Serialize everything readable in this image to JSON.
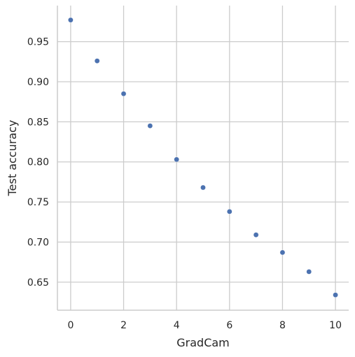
{
  "chart_data": {
    "type": "scatter",
    "title": "",
    "xlabel": "GradCam",
    "ylabel": "Test accuracy",
    "xlim": [
      -0.5,
      10.5
    ],
    "ylim": [
      0.615,
      0.995
    ],
    "xticks": [
      0,
      2,
      4,
      6,
      8,
      10
    ],
    "yticks": [
      0.65,
      0.7,
      0.75,
      0.8,
      0.85,
      0.9,
      0.95
    ],
    "ytick_labels": [
      "0.65",
      "0.70",
      "0.75",
      "0.80",
      "0.85",
      "0.90",
      "0.95"
    ],
    "grid": true,
    "series": [
      {
        "color": "#4c72b0",
        "x": [
          0,
          1,
          2,
          3,
          4,
          5,
          6,
          7,
          8,
          9,
          10
        ],
        "y": [
          0.977,
          0.926,
          0.885,
          0.845,
          0.803,
          0.768,
          0.738,
          0.709,
          0.687,
          0.663,
          0.634
        ]
      }
    ]
  }
}
